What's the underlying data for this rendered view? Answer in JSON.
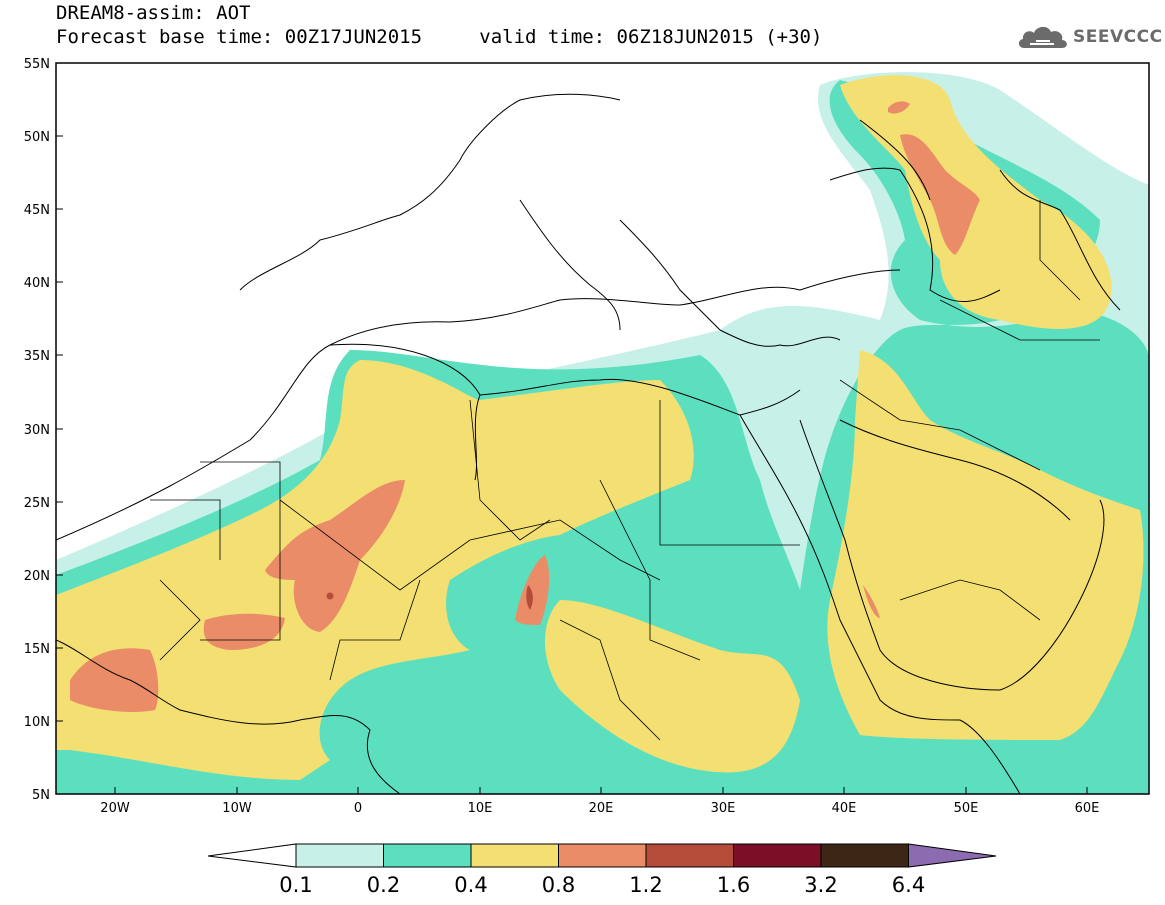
{
  "header": {
    "title": "DREAM8-assim: AOT",
    "base_time": "Forecast base time: 00Z17JUN2015",
    "valid_time": "valid time: 06Z18JUN2015 (+30)"
  },
  "logo": {
    "text": "SEEVCCC",
    "icon": "cloud-icon"
  },
  "map": {
    "lat_labels": [
      "55N",
      "50N",
      "45N",
      "40N",
      "35N",
      "30N",
      "25N",
      "20N",
      "15N",
      "10N",
      "5N"
    ],
    "lon_labels": [
      "20W",
      "10W",
      "0",
      "10E",
      "20E",
      "30E",
      "40E",
      "50E",
      "60E"
    ]
  },
  "colorbar": {
    "labels": [
      "0.1",
      "0.2",
      "0.4",
      "0.8",
      "1.2",
      "1.6",
      "3.2",
      "6.4"
    ],
    "colors": {
      "under": "#ffffff",
      "bins": [
        "#c7f0e8",
        "#5cdfbf",
        "#f4df73",
        "#ea8c68",
        "#b54c3a",
        "#7a0f27",
        "#3c2716"
      ],
      "over": "#8c6bb0"
    }
  }
}
